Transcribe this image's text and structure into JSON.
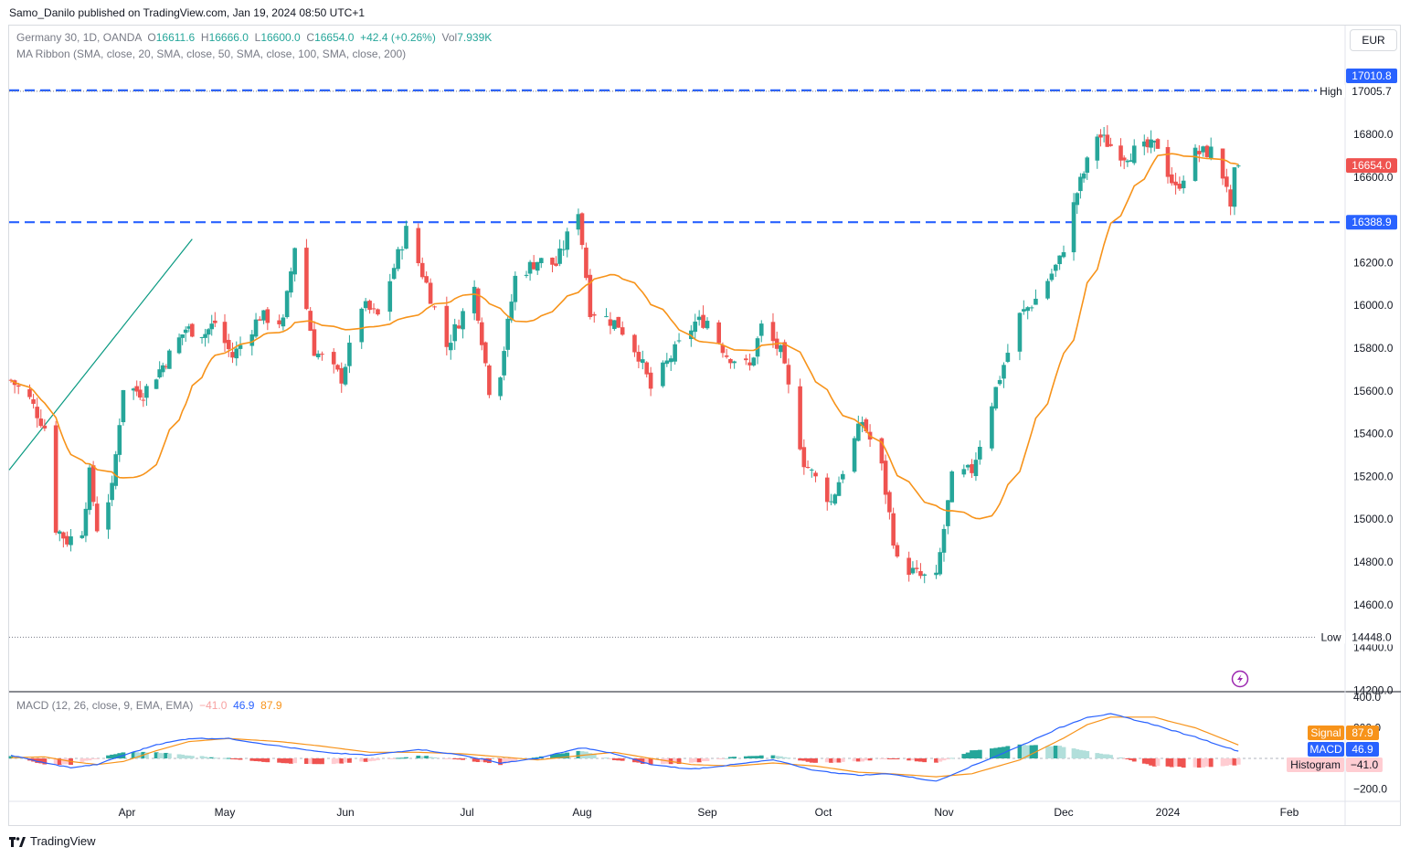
{
  "publisher": "Samo_Danilo published on TradingView.com, Jan 19, 2024 08:50 UTC+1",
  "footer_brand": "TradingView",
  "currency": "EUR",
  "legend": {
    "symbol": "Germany 30, 1D, OANDA",
    "open_label": "O",
    "open": "16611.6",
    "high_label": "H",
    "high": "16666.0",
    "low_label": "L",
    "low": "16600.0",
    "close_label": "C",
    "close": "16654.0",
    "change": "+42.4 (+0.26%)",
    "vol_label": "Vol",
    "vol": "7.939K",
    "ma": "MA Ribbon (SMA, close, 20, SMA, close, 50, SMA, close, 100, SMA, close, 200)",
    "macd": "MACD (12, 26, close, 9, EMA, EMA)",
    "macd_hist": "−41.0",
    "macd_macd": "46.9",
    "macd_signal": "87.9"
  },
  "colors": {
    "up": "#26a69a",
    "down": "#ef5350",
    "ma": "#f7931a",
    "level": "#2962ff",
    "macd": "#2962ff",
    "signal": "#f7931a",
    "hist_up": "#26a69a",
    "hist_down": "#ef5350"
  },
  "chart_data": {
    "type": "candlestick",
    "price_ticks": [
      "17000.0",
      "16800.0",
      "16600.0",
      "16200.0",
      "16000.0",
      "15800.0",
      "15600.0",
      "15400.0",
      "15200.0",
      "15000.0",
      "14800.0",
      "14600.0",
      "14400.0",
      "14200.0"
    ],
    "macd_ticks": [
      "400.0",
      "200.0",
      "−200.0"
    ],
    "x_labels": [
      "Apr",
      "May",
      "Jun",
      "Jul",
      "Aug",
      "Sep",
      "Oct",
      "Nov",
      "Dec",
      "2024",
      "Feb"
    ],
    "labels": {
      "high_tag": "High",
      "high_value": "17005.7",
      "low_tag": "Low",
      "low_value": "14448.0",
      "top_line_value": "17010.8",
      "support_value": "16388.9",
      "last_price": "16654.0",
      "signal_tag": "Signal",
      "signal_value": "87.9",
      "macd_tag": "MACD",
      "macd_value": "46.9",
      "hist_tag": "Histogram",
      "hist_value": "−41.0"
    },
    "levels": [
      17010.8,
      16388.9
    ],
    "high": 17005.7,
    "low": 14448.0,
    "last": 16654.0,
    "trendline": [
      [
        "2023-03-15",
        15230
      ],
      [
        "2023-04-21",
        16310
      ]
    ],
    "anchors": [
      [
        "2023-03-01",
        15650
      ],
      [
        "2023-03-06",
        15560
      ],
      [
        "2023-03-10",
        15430
      ],
      [
        "2023-03-13",
        14960
      ],
      [
        "2023-03-16",
        14900
      ],
      [
        "2023-03-20",
        14950
      ],
      [
        "2023-03-22",
        15210
      ],
      [
        "2023-03-24",
        14960
      ],
      [
        "2023-03-28",
        15140
      ],
      [
        "2023-03-31",
        15620
      ],
      [
        "2023-04-06",
        15590
      ],
      [
        "2023-04-12",
        15720
      ],
      [
        "2023-04-19",
        15890
      ],
      [
        "2023-04-25",
        15870
      ],
      [
        "2023-04-28",
        15920
      ],
      [
        "2023-05-03",
        15760
      ],
      [
        "2023-05-10",
        15950
      ],
      [
        "2023-05-16",
        15920
      ],
      [
        "2023-05-19",
        16280
      ],
      [
        "2023-05-24",
        15790
      ],
      [
        "2023-05-31",
        15660
      ],
      [
        "2023-06-05",
        16000
      ],
      [
        "2023-06-09",
        15950
      ],
      [
        "2023-06-16",
        16350
      ],
      [
        "2023-06-21",
        16100
      ],
      [
        "2023-06-26",
        15810
      ],
      [
        "2023-07-03",
        16080
      ],
      [
        "2023-07-07",
        15610
      ],
      [
        "2023-07-10",
        15690
      ],
      [
        "2023-07-14",
        16130
      ],
      [
        "2023-07-20",
        16210
      ],
      [
        "2023-07-25",
        16190
      ],
      [
        "2023-07-31",
        16450
      ],
      [
        "2023-08-03",
        15980
      ],
      [
        "2023-08-10",
        15910
      ],
      [
        "2023-08-15",
        15770
      ],
      [
        "2023-08-18",
        15610
      ],
      [
        "2023-08-23",
        15760
      ],
      [
        "2023-08-29",
        15920
      ],
      [
        "2023-09-01",
        15930
      ],
      [
        "2023-09-06",
        15770
      ],
      [
        "2023-09-12",
        15710
      ],
      [
        "2023-09-15",
        15900
      ],
      [
        "2023-09-20",
        15780
      ],
      [
        "2023-09-26",
        15270
      ],
      [
        "2023-10-03",
        15080
      ],
      [
        "2023-10-06",
        15230
      ],
      [
        "2023-10-11",
        15460
      ],
      [
        "2023-10-16",
        15240
      ],
      [
        "2023-10-20",
        14800
      ],
      [
        "2023-10-26",
        14730
      ],
      [
        "2023-10-30",
        14720
      ],
      [
        "2023-11-03",
        15190
      ],
      [
        "2023-11-08",
        15230
      ],
      [
        "2023-11-14",
        15610
      ],
      [
        "2023-11-20",
        15950
      ],
      [
        "2023-11-24",
        16030
      ],
      [
        "2023-11-30",
        16210
      ],
      [
        "2023-12-05",
        16530
      ],
      [
        "2023-12-11",
        16800
      ],
      [
        "2023-12-14",
        16760
      ],
      [
        "2023-12-19",
        16700
      ],
      [
        "2023-12-22",
        16720
      ],
      [
        "2023-12-29",
        16750
      ],
      [
        "2024-01-03",
        16540
      ],
      [
        "2024-01-08",
        16710
      ],
      [
        "2024-01-12",
        16720
      ],
      [
        "2024-01-16",
        16570
      ],
      [
        "2024-01-17",
        16430
      ],
      [
        "2024-01-18",
        16612
      ],
      [
        "2024-01-19",
        16654
      ]
    ],
    "macd_anchors": [
      [
        "2023-03-01",
        20,
        5
      ],
      [
        "2023-03-10",
        -30,
        10
      ],
      [
        "2023-03-17",
        -60,
        -20
      ],
      [
        "2023-03-24",
        -40,
        -40
      ],
      [
        "2023-03-31",
        20,
        -20
      ],
      [
        "2023-04-10",
        90,
        50
      ],
      [
        "2023-04-20",
        130,
        110
      ],
      [
        "2023-05-02",
        130,
        130
      ],
      [
        "2023-05-15",
        80,
        110
      ],
      [
        "2023-05-26",
        40,
        80
      ],
      [
        "2023-06-07",
        20,
        40
      ],
      [
        "2023-06-19",
        60,
        40
      ],
      [
        "2023-06-30",
        20,
        30
      ],
      [
        "2023-07-10",
        -30,
        10
      ],
      [
        "2023-07-20",
        0,
        -10
      ],
      [
        "2023-08-01",
        70,
        20
      ],
      [
        "2023-08-09",
        30,
        40
      ],
      [
        "2023-08-18",
        -40,
        0
      ],
      [
        "2023-08-28",
        -70,
        -40
      ],
      [
        "2023-09-08",
        -40,
        -50
      ],
      [
        "2023-09-18",
        -10,
        -30
      ],
      [
        "2023-09-29",
        -80,
        -50
      ],
      [
        "2023-10-10",
        -110,
        -90
      ],
      [
        "2023-10-18",
        -100,
        -100
      ],
      [
        "2023-10-30",
        -150,
        -120
      ],
      [
        "2023-11-08",
        -50,
        -100
      ],
      [
        "2023-11-20",
        80,
        -10
      ],
      [
        "2023-11-30",
        200,
        120
      ],
      [
        "2023-12-08",
        270,
        220
      ],
      [
        "2023-12-15",
        290,
        270
      ],
      [
        "2023-12-28",
        220,
        270
      ],
      [
        "2024-01-08",
        140,
        200
      ],
      [
        "2024-01-19",
        47,
        88
      ]
    ]
  }
}
